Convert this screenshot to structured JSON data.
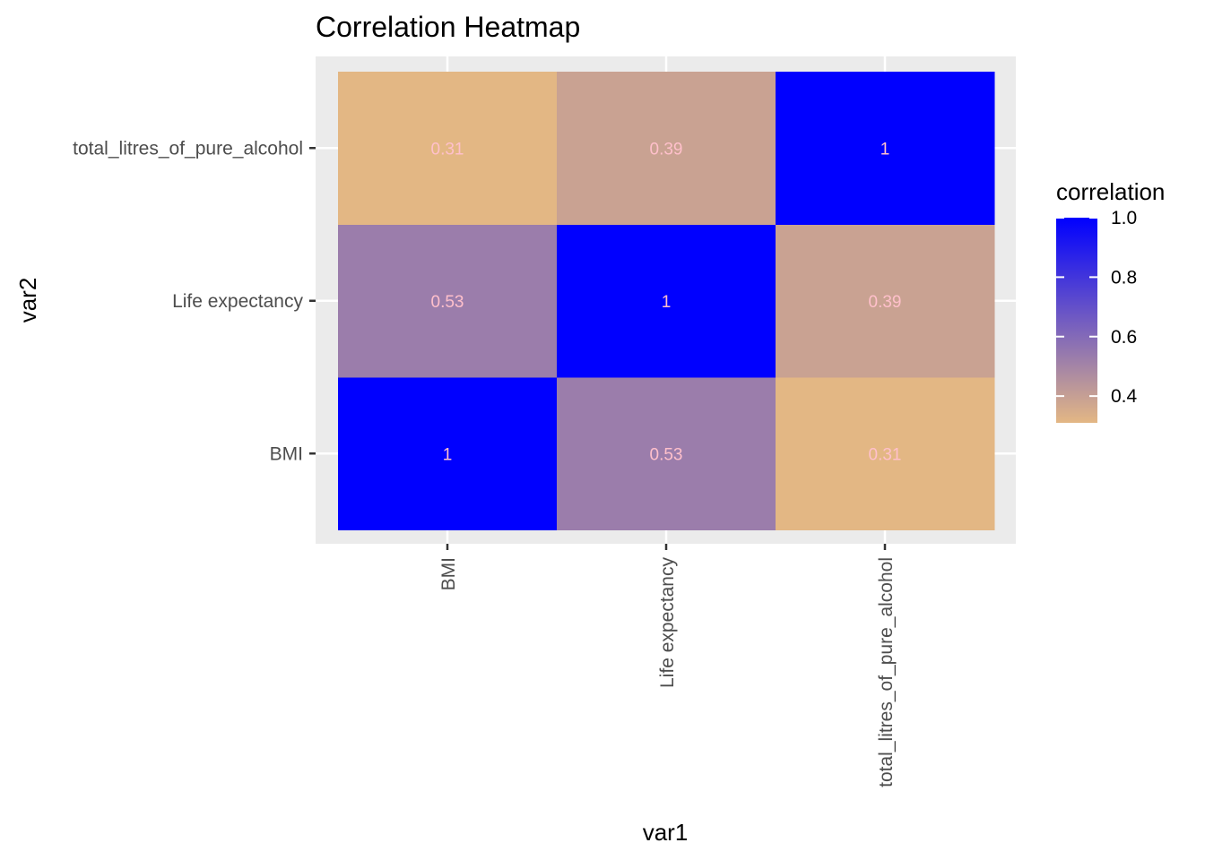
{
  "chart_data": {
    "type": "heatmap",
    "title": "Correlation Heatmap",
    "xlabel": "var1",
    "ylabel": "var2",
    "x_categories": [
      "BMI",
      "Life expectancy",
      "total_litres_of_pure_alcohol"
    ],
    "y_categories": [
      "BMI",
      "Life expectancy",
      "total_litres_of_pure_alcohol"
    ],
    "cells": [
      {
        "x": "BMI",
        "y": "BMI",
        "value": 1.0,
        "label": "1"
      },
      {
        "x": "Life expectancy",
        "y": "BMI",
        "value": 0.53,
        "label": "0.53"
      },
      {
        "x": "total_litres_of_pure_alcohol",
        "y": "BMI",
        "value": 0.31,
        "label": "0.31"
      },
      {
        "x": "BMI",
        "y": "Life expectancy",
        "value": 0.53,
        "label": "0.53"
      },
      {
        "x": "Life expectancy",
        "y": "Life expectancy",
        "value": 1.0,
        "label": "1"
      },
      {
        "x": "total_litres_of_pure_alcohol",
        "y": "Life expectancy",
        "value": 0.39,
        "label": "0.39"
      },
      {
        "x": "BMI",
        "y": "total_litres_of_pure_alcohol",
        "value": 0.31,
        "label": "0.31"
      },
      {
        "x": "Life expectancy",
        "y": "total_litres_of_pure_alcohol",
        "value": 0.39,
        "label": "0.39"
      },
      {
        "x": "total_litres_of_pure_alcohol",
        "y": "total_litres_of_pure_alcohol",
        "value": 1.0,
        "label": "1"
      }
    ],
    "legend": {
      "title": "correlation",
      "placement": "right",
      "range": [
        0.31,
        1.0
      ],
      "ticks": [
        0.4,
        0.6,
        0.8,
        1.0
      ],
      "tick_labels": [
        "0.4",
        "0.6",
        "0.8",
        "1.0"
      ]
    },
    "grid": true
  },
  "colors": {
    "low": "#e3b784",
    "high": "#0000ff",
    "panel_background": "#ebebeb",
    "gridline": "#ffffff",
    "cell_label": "#ffc0cb"
  }
}
